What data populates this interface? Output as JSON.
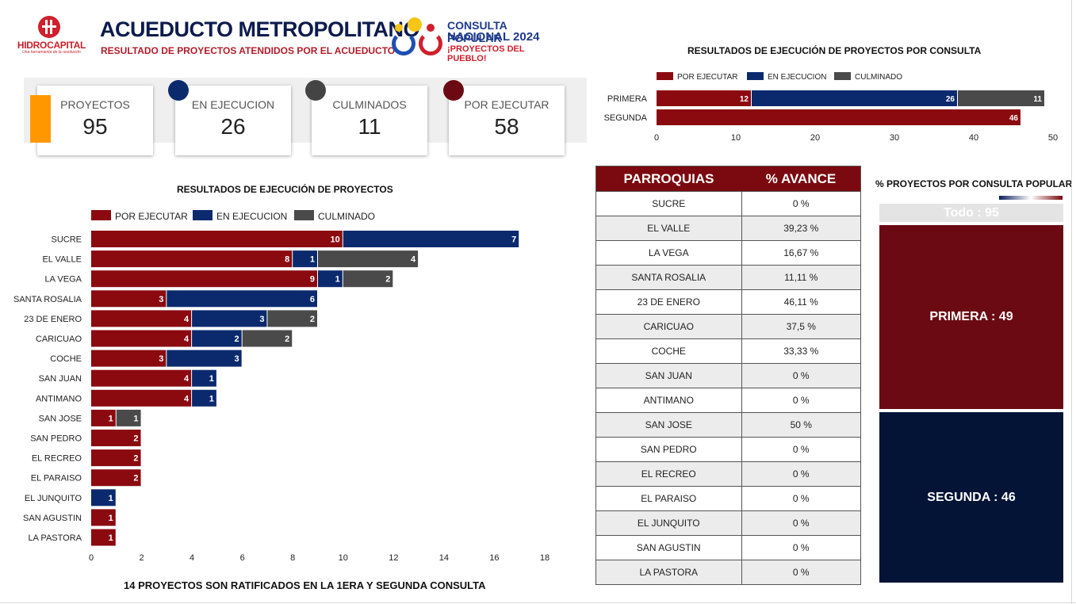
{
  "header": {
    "logo_name": "HIDROCAPITAL",
    "logo_tagline": "Una herramienta de la revolución",
    "title": "ACUEDUCTO METROPOLITANO",
    "subtitle": "RESULTADO DE PROYECTOS ATENDIDOS POR EL ACUEDUCTO",
    "consulta_line1": "CONSULTA POPULAR",
    "consulta_line2": "NACIONAL 2024",
    "consulta_line3": "¡PROYECTOS DEL PUEBLO!"
  },
  "kpis": [
    {
      "label": "PROYECTOS",
      "value": "95"
    },
    {
      "label": "EN EJECUCION",
      "value": "26"
    },
    {
      "label": "CULMINADOS",
      "value": "11"
    },
    {
      "label": "POR EJECUTAR",
      "value": "58"
    }
  ],
  "colors": {
    "por_ejecutar": "#8b0a10",
    "en_ejecucion": "#0b2a6e",
    "culminado": "#4a4a4a",
    "orange": "#ff9800",
    "kpi_dot_en_ejecucion": "#0b2a6e",
    "kpi_dot_culminados": "#444444",
    "kpi_dot_por_ejecutar": "#6b0a12"
  },
  "chart_data": [
    {
      "type": "bar",
      "orientation": "horizontal",
      "stacked": true,
      "title": "RESULTADOS DE EJECUCIÓN DE PROYECTOS POR CONSULTA",
      "categories": [
        "PRIMERA",
        "SEGUNDA"
      ],
      "series": [
        {
          "name": "POR EJECUTAR",
          "values": [
            12,
            46
          ]
        },
        {
          "name": "EN EJECUCION",
          "values": [
            26,
            0
          ]
        },
        {
          "name": "CULMINADO",
          "values": [
            11,
            0
          ]
        }
      ],
      "xlim": [
        0,
        50
      ],
      "xticks": [
        0,
        10,
        20,
        30,
        40,
        50
      ],
      "legend": "top-left"
    },
    {
      "type": "bar",
      "orientation": "horizontal",
      "stacked": true,
      "title": "RESULTADOS DE EJECUCIÓN DE PROYECTOS",
      "categories": [
        "SUCRE",
        "EL VALLE",
        "LA VEGA",
        "SANTA ROSALIA",
        "23 DE ENERO",
        "CARICUAO",
        "COCHE",
        "SAN JUAN",
        "ANTIMANO",
        "SAN JOSE",
        "SAN PEDRO",
        "EL RECREO",
        "EL PARAISO",
        "EL JUNQUITO",
        "SAN AGUSTIN",
        "LA PASTORA"
      ],
      "series": [
        {
          "name": "POR EJECUTAR",
          "values": [
            10,
            8,
            9,
            3,
            4,
            4,
            3,
            4,
            4,
            1,
            2,
            2,
            2,
            0,
            1,
            1
          ]
        },
        {
          "name": "EN EJECUCION",
          "values": [
            7,
            1,
            1,
            6,
            3,
            2,
            3,
            1,
            1,
            0,
            0,
            0,
            0,
            1,
            0,
            0
          ]
        },
        {
          "name": "CULMINADO",
          "values": [
            0,
            4,
            2,
            0,
            2,
            2,
            0,
            0,
            0,
            1,
            0,
            0,
            0,
            0,
            0,
            0
          ]
        }
      ],
      "xlim": [
        0,
        18
      ],
      "xticks": [
        0,
        2,
        4,
        6,
        8,
        10,
        12,
        14,
        16,
        18
      ],
      "legend": "top-left"
    },
    {
      "type": "treemap",
      "title": "% PROYECTOS POR CONSULTA POPULAR",
      "total_label": "Todo : 95",
      "items": [
        {
          "label": "PRIMERA : 49",
          "value": 49
        },
        {
          "label": "SEGUNDA : 46",
          "value": 46
        }
      ]
    }
  ],
  "table": {
    "headers": [
      "PARROQUIAS",
      "% AVANCE"
    ],
    "rows": [
      [
        "SUCRE",
        "0 %"
      ],
      [
        "EL VALLE",
        "39,23 %"
      ],
      [
        "LA VEGA",
        "16,67 %"
      ],
      [
        "SANTA ROSALIA",
        "11,11 %"
      ],
      [
        "23 DE ENERO",
        "46,11 %"
      ],
      [
        "CARICUAO",
        "37,5 %"
      ],
      [
        "COCHE",
        "33,33 %"
      ],
      [
        "SAN JUAN",
        "0 %"
      ],
      [
        "ANTIMANO",
        "0 %"
      ],
      [
        "SAN JOSE",
        "50 %"
      ],
      [
        "SAN PEDRO",
        "0 %"
      ],
      [
        "EL RECREO",
        "0 %"
      ],
      [
        "EL PARAISO",
        "0 %"
      ],
      [
        "EL JUNQUITO",
        "0 %"
      ],
      [
        "SAN AGUSTIN",
        "0 %"
      ],
      [
        "LA PASTORA",
        "0 %"
      ]
    ]
  },
  "footnote": "14 PROYECTOS SON RATIFICADOS EN LA 1ERA Y SEGUNDA CONSULTA"
}
